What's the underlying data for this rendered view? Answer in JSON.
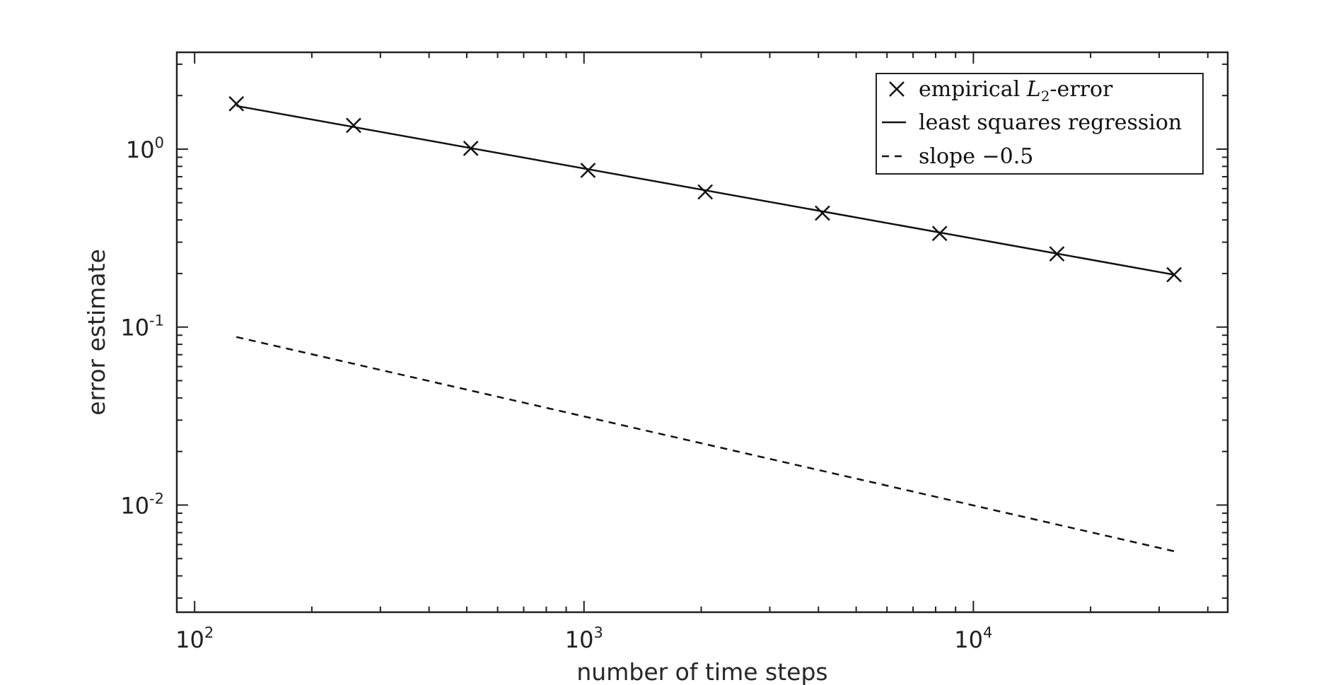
{
  "chart_data": {
    "type": "line",
    "title": "",
    "xlabel": "number of time steps",
    "ylabel": "error estimate",
    "xscale": "log",
    "yscale": "log",
    "xlim": [
      90,
      45000
    ],
    "ylim": [
      0.0025,
      3.5
    ],
    "grid": false,
    "legend_position": "top-right",
    "x_ticks": [
      {
        "value": 100,
        "base": "10",
        "exp": "2"
      },
      {
        "value": 1000,
        "base": "10",
        "exp": "3"
      },
      {
        "value": 10000,
        "base": "10",
        "exp": "4"
      }
    ],
    "y_ticks": [
      {
        "value": 1,
        "base": "10",
        "exp": "0"
      },
      {
        "value": 0.1,
        "base": "10",
        "exp": "-1"
      },
      {
        "value": 0.01,
        "base": "10",
        "exp": "-2"
      }
    ],
    "series": [
      {
        "name": "empirical L2-error",
        "legend_parts": {
          "pre": "empirical ",
          "italic": "L",
          "sub": "2",
          "post": "-error"
        },
        "style": "markers-x",
        "color": "#111111",
        "points": [
          {
            "x": 128,
            "y": 1.8
          },
          {
            "x": 256,
            "y": 1.36
          },
          {
            "x": 512,
            "y": 1.01
          },
          {
            "x": 1024,
            "y": 0.76
          },
          {
            "x": 2048,
            "y": 0.575
          },
          {
            "x": 4096,
            "y": 0.437
          },
          {
            "x": 8192,
            "y": 0.336
          },
          {
            "x": 16384,
            "y": 0.258
          },
          {
            "x": 32768,
            "y": 0.197
          }
        ]
      },
      {
        "name": "least squares regression",
        "style": "solid",
        "color": "#111111",
        "points": [
          {
            "x": 128,
            "y": 1.75
          },
          {
            "x": 32768,
            "y": 0.197
          }
        ]
      },
      {
        "name": "slope −0.5",
        "style": "dashed",
        "color": "#111111",
        "points": [
          {
            "x": 128,
            "y": 0.088
          },
          {
            "x": 32768,
            "y": 0.0055
          }
        ]
      }
    ]
  }
}
